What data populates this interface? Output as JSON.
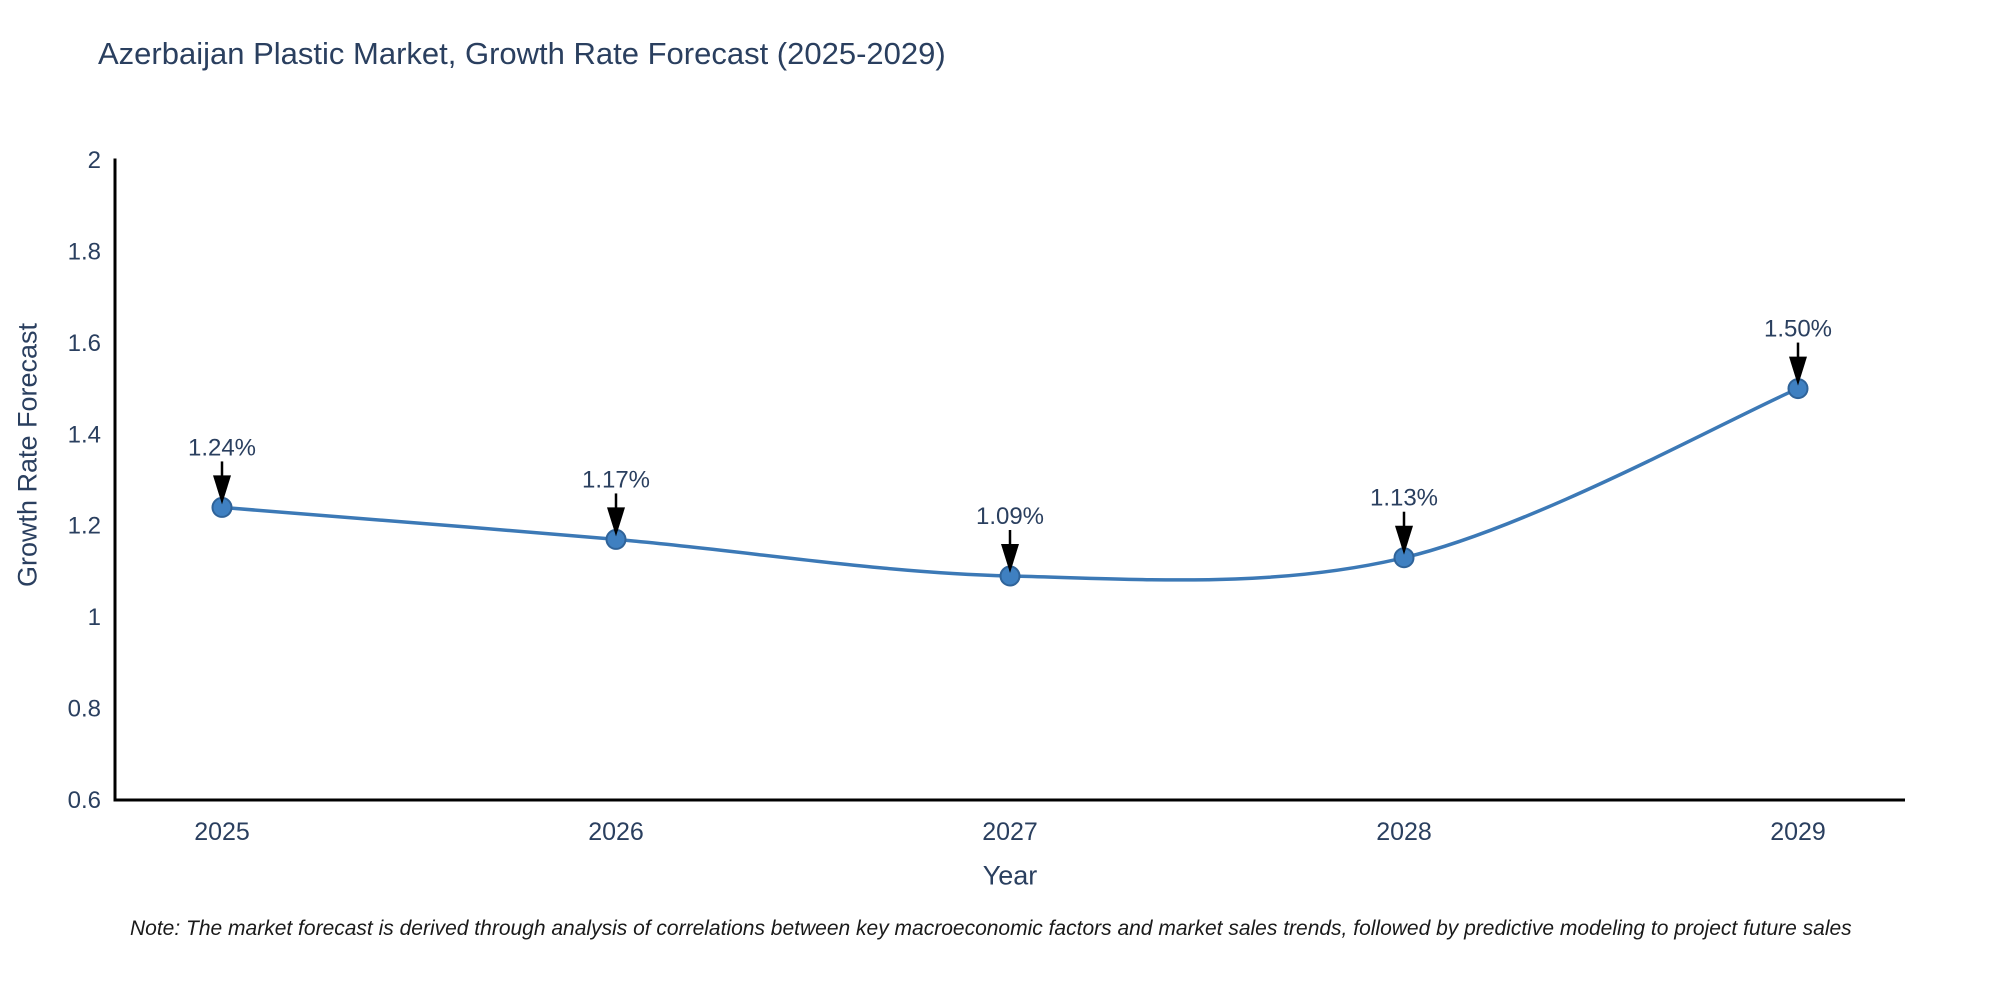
{
  "chart_data": {
    "type": "line",
    "title": "Azerbaijan Plastic Market, Growth Rate Forecast (2025-2029)",
    "xlabel": "Year",
    "ylabel": "Growth Rate Forecast",
    "categories": [
      "2025",
      "2026",
      "2027",
      "2028",
      "2029"
    ],
    "values": [
      1.24,
      1.17,
      1.09,
      1.13,
      1.5
    ],
    "point_labels": [
      "1.24%",
      "1.17%",
      "1.09%",
      "1.13%",
      "1.50%"
    ],
    "ylim": [
      0.6,
      2
    ],
    "ytick_labels": [
      "0.6",
      "0.8",
      "1",
      "1.2",
      "1.4",
      "1.6",
      "1.8",
      "2"
    ],
    "ytick_values": [
      0.6,
      0.8,
      1,
      1.2,
      1.4,
      1.6,
      1.8,
      2
    ],
    "line_shape": "spline",
    "grid": false,
    "legend_position": "none",
    "colors": {
      "line": "#3c79b6",
      "marker": "#3f80c1",
      "marker_edge": "#2f6399",
      "axis": "#000000",
      "text": "#2a3f5f",
      "arrow": "#000000",
      "note_text": "#1a1a1a",
      "background": "#ffffff"
    }
  },
  "note": "Note: The market forecast is derived through analysis of correlations between key macroeconomic factors and market sales trends, followed by predictive modeling to project future sales"
}
